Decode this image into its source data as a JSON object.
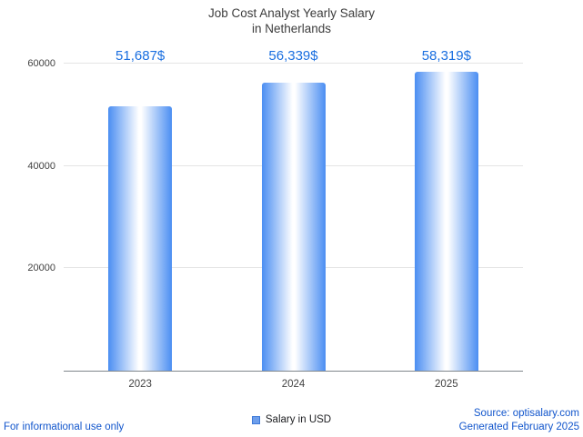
{
  "header": {
    "title_line1": "Job Cost Analyst Yearly Salary",
    "title_line2": "in Netherlands"
  },
  "chart_data": {
    "type": "bar",
    "title": "Job Cost Analyst Yearly Salary in Netherlands",
    "categories": [
      "2023",
      "2024",
      "2025"
    ],
    "values": [
      51687,
      56339,
      58319
    ],
    "value_labels": [
      "51,687$",
      "56,339$",
      "58,319$"
    ],
    "series_name": "Salary in USD",
    "xlabel": "",
    "ylabel": "",
    "ylim": [
      0,
      60000
    ],
    "yticks": [
      20000,
      40000,
      60000
    ],
    "grid": true,
    "legend": {
      "label": "Salary in USD",
      "position": "bottom-center",
      "marker_color": "#6d9eeb"
    },
    "colors": {
      "bar_edge": "#4b8ef2",
      "bar_center": "#ffffff",
      "value_label": "#1a6fe0",
      "axis_text": "#424242",
      "gridline": "#e4e4e4",
      "link": "#1155cc"
    }
  },
  "footer": {
    "left_note": "For informational use only",
    "source": "Source: optisalary.com",
    "generated": "Generated February 2025"
  }
}
